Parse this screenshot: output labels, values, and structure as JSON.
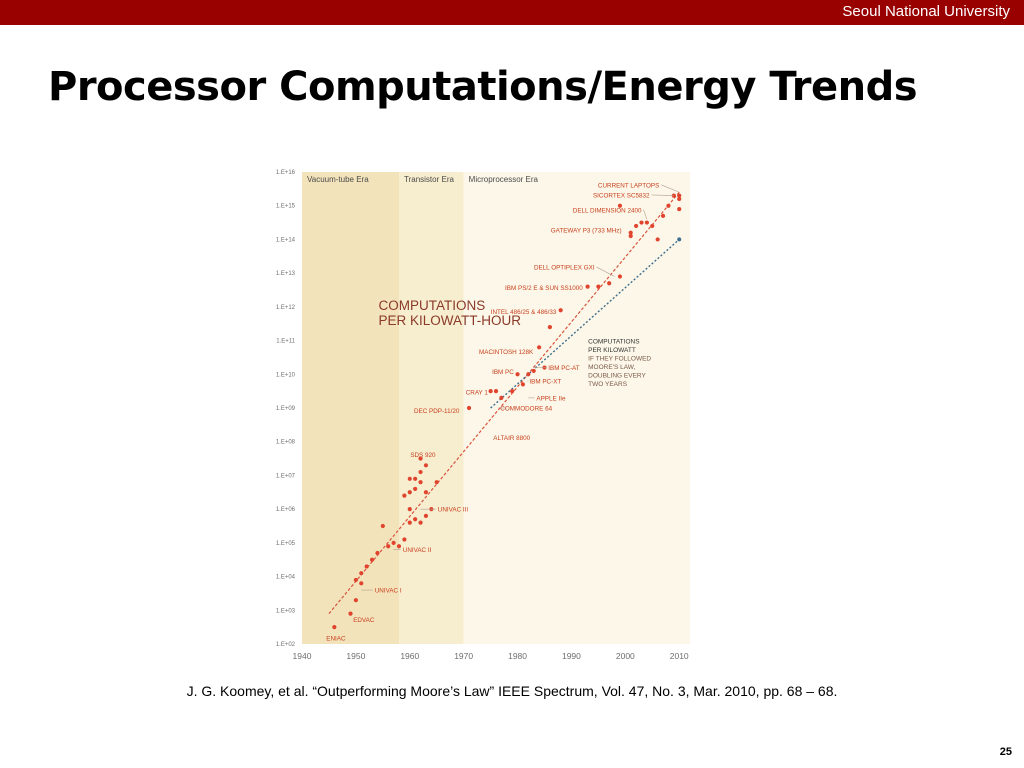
{
  "header": {
    "university": "Seoul National University"
  },
  "slide": {
    "title": "Processor Computations/Energy Trends",
    "caption": "J. G. Koomey, et al. “Outperforming Moore’s Law” IEEE Spectrum, Vol. 47, No. 3, Mar. 2010, pp. 68 – 68.",
    "page_number": "25"
  },
  "chart_data": {
    "type": "scatter",
    "title": "COMPUTATIONS PER KILOWATT-HOUR",
    "title_lines": [
      "COMPUTATIONS",
      "PER KILOWATT-HOUR"
    ],
    "xlim": [
      1940,
      2012
    ],
    "ylim_log10": [
      2,
      16
    ],
    "x_ticks": [
      1940,
      1950,
      1960,
      1970,
      1980,
      1990,
      2000,
      2010
    ],
    "y_ticks": [
      {
        "exp": 16,
        "label": "1.E+16"
      },
      {
        "exp": 15,
        "label": "1.E+15"
      },
      {
        "exp": 14,
        "label": "1.E+14"
      },
      {
        "exp": 13,
        "label": "1.E+13"
      },
      {
        "exp": 12,
        "label": "1.E+12"
      },
      {
        "exp": 11,
        "label": "1.E+11"
      },
      {
        "exp": 10,
        "label": "1.E+10"
      },
      {
        "exp": 9,
        "label": "1.E+09"
      },
      {
        "exp": 8,
        "label": "1.E+08"
      },
      {
        "exp": 7,
        "label": "1.E+07"
      },
      {
        "exp": 6,
        "label": "1.E+06"
      },
      {
        "exp": 5,
        "label": "1.E+05"
      },
      {
        "exp": 4,
        "label": "1.E+04"
      },
      {
        "exp": 3,
        "label": "1.E+03"
      },
      {
        "exp": 2,
        "label": "1.E+02"
      }
    ],
    "eras": [
      {
        "name": "Vacuum-tube Era",
        "start": 1940,
        "end": 1958,
        "color": "#f2e3bb"
      },
      {
        "name": "Transistor Era",
        "start": 1958,
        "end": 1970,
        "color": "#f7edcf"
      },
      {
        "name": "Microprocessor Era",
        "start": 1970,
        "end": 2012,
        "color": "#fcf7e8"
      }
    ],
    "colors": {
      "points": "#e0442e",
      "trend": "#d9533e",
      "moore": "#3e6f8e",
      "labels": "#c8401f",
      "axis_text": "#6e6e6e"
    },
    "points": [
      {
        "x": 1946,
        "y": 2.5
      },
      {
        "x": 1949,
        "y": 2.9
      },
      {
        "x": 1950,
        "y": 3.3
      },
      {
        "x": 1951,
        "y": 3.8
      },
      {
        "x": 1950,
        "y": 3.9
      },
      {
        "x": 1951,
        "y": 4.1
      },
      {
        "x": 1952,
        "y": 4.3
      },
      {
        "x": 1953,
        "y": 4.5
      },
      {
        "x": 1954,
        "y": 4.7
      },
      {
        "x": 1955,
        "y": 5.5
      },
      {
        "x": 1956,
        "y": 4.9
      },
      {
        "x": 1957,
        "y": 5.0
      },
      {
        "x": 1958,
        "y": 4.9
      },
      {
        "x": 1959,
        "y": 5.1
      },
      {
        "x": 1960,
        "y": 5.6
      },
      {
        "x": 1960,
        "y": 6.0
      },
      {
        "x": 1961,
        "y": 5.7
      },
      {
        "x": 1962,
        "y": 5.6
      },
      {
        "x": 1963,
        "y": 5.8
      },
      {
        "x": 1959,
        "y": 6.4
      },
      {
        "x": 1961,
        "y": 6.6
      },
      {
        "x": 1962,
        "y": 6.8
      },
      {
        "x": 1960,
        "y": 6.9
      },
      {
        "x": 1960,
        "y": 6.5
      },
      {
        "x": 1961,
        "y": 6.9
      },
      {
        "x": 1962,
        "y": 7.1
      },
      {
        "x": 1963,
        "y": 7.3
      },
      {
        "x": 1962,
        "y": 7.5
      },
      {
        "x": 1963,
        "y": 6.5
      },
      {
        "x": 1964,
        "y": 6.0
      },
      {
        "x": 1965,
        "y": 6.8
      },
      {
        "x": 1971,
        "y": 9.0
      },
      {
        "x": 1975,
        "y": 9.5
      },
      {
        "x": 1976,
        "y": 9.5
      },
      {
        "x": 1977,
        "y": 9.3
      },
      {
        "x": 1979,
        "y": 9.5
      },
      {
        "x": 1980,
        "y": 10.0
      },
      {
        "x": 1981,
        "y": 9.7
      },
      {
        "x": 1982,
        "y": 10.0
      },
      {
        "x": 1983,
        "y": 10.1
      },
      {
        "x": 1984,
        "y": 10.8
      },
      {
        "x": 1985,
        "y": 10.2
      },
      {
        "x": 1986,
        "y": 11.4
      },
      {
        "x": 1988,
        "y": 11.9
      },
      {
        "x": 1993,
        "y": 12.6
      },
      {
        "x": 1995,
        "y": 12.6
      },
      {
        "x": 1997,
        "y": 12.7
      },
      {
        "x": 1999,
        "y": 12.9
      },
      {
        "x": 2001,
        "y": 14.2
      },
      {
        "x": 2001,
        "y": 14.1
      },
      {
        "x": 2002,
        "y": 14.4
      },
      {
        "x": 2003,
        "y": 14.5
      },
      {
        "x": 2004,
        "y": 14.5
      },
      {
        "x": 2005,
        "y": 14.4
      },
      {
        "x": 2006,
        "y": 14.0
      },
      {
        "x": 2007,
        "y": 14.7
      },
      {
        "x": 2008,
        "y": 15.0
      },
      {
        "x": 2009,
        "y": 15.3
      },
      {
        "x": 2010,
        "y": 15.2
      },
      {
        "x": 2010,
        "y": 15.3
      },
      {
        "x": 2010,
        "y": 14.9
      },
      {
        "x": 1999,
        "y": 15.0
      }
    ],
    "trend_line": {
      "x1": 1945,
      "y1": 2.9,
      "x2": 2010,
      "y2": 15.4
    },
    "moore_line": {
      "x1": 1975,
      "y1": 9.0,
      "x2": 2010,
      "y2": 14.0
    },
    "moore_label_lines": [
      "COMPUTATIONS",
      "PER KILOWATT",
      "IF THEY FOLLOWED",
      "MOORE'S LAW,",
      "DOUBLING EVERY",
      "TWO YEARS"
    ],
    "annotations": [
      {
        "text": "ENIAC",
        "x": 1946,
        "y": 2.5,
        "tx": 1944.5,
        "ty": 2.18,
        "anchor": "start",
        "leader": false
      },
      {
        "text": "EDVAC",
        "x": 1951,
        "y": 3.0,
        "tx": 1949.5,
        "ty": 2.72,
        "anchor": "start",
        "leader": false
      },
      {
        "text": "UNIVAC I",
        "x": 1951,
        "y": 3.6,
        "tx": 1953.5,
        "ty": 3.6,
        "anchor": "start",
        "leader": true
      },
      {
        "text": "UNIVAC II",
        "x": 1957,
        "y": 4.8,
        "tx": 1958.7,
        "ty": 4.8,
        "anchor": "start",
        "leader": true
      },
      {
        "text": "UNIVAC III",
        "x": 1962,
        "y": 6.0,
        "tx": 1965.2,
        "ty": 6.0,
        "anchor": "start",
        "leader": true
      },
      {
        "text": "SDS 920",
        "x": 1963,
        "y": 7.5,
        "tx": 1960.1,
        "ty": 7.62,
        "anchor": "start",
        "leader": false
      },
      {
        "text": "DEC PDP-11/20",
        "x": 1971,
        "y": 9.0,
        "tx": 1969.2,
        "ty": 8.92,
        "anchor": "end",
        "leader": false
      },
      {
        "text": "ALTAIR 8800",
        "x": 1975,
        "y": 8.7,
        "tx": 1975.5,
        "ty": 8.13,
        "anchor": "start",
        "leader": false
      },
      {
        "text": "COMMODORE 64",
        "x": 1978,
        "y": 9.0,
        "tx": 1976.8,
        "ty": 9.0,
        "anchor": "start",
        "leader": true
      },
      {
        "text": "CRAY 1",
        "x": 1976,
        "y": 9.5,
        "tx": 1974.5,
        "ty": 9.48,
        "anchor": "end",
        "leader": false
      },
      {
        "text": "APPLE IIe",
        "x": 1982,
        "y": 9.3,
        "tx": 1983.5,
        "ty": 9.3,
        "anchor": "start",
        "leader": true
      },
      {
        "text": "IBM PC-XT",
        "x": 1982,
        "y": 9.8,
        "tx": 1982.2,
        "ty": 9.8,
        "anchor": "start",
        "leader": true
      },
      {
        "text": "IBM PC-AT",
        "x": 1983,
        "y": 10.2,
        "tx": 1985.7,
        "ty": 10.2,
        "anchor": "start",
        "leader": true
      },
      {
        "text": "IBM PC",
        "x": 1980,
        "y": 10.0,
        "tx": 1979.3,
        "ty": 10.08,
        "anchor": "end",
        "leader": false
      },
      {
        "text": "MACINTOSH 128K",
        "x": 1984,
        "y": 10.8,
        "tx": 1982.9,
        "ty": 10.68,
        "anchor": "end",
        "leader": false
      },
      {
        "text": "INTEL 486/25 & 486/33",
        "x": 1988,
        "y": 11.9,
        "tx": 1987.2,
        "ty": 11.86,
        "anchor": "end",
        "leader": false
      },
      {
        "text": "IBM PS/2 E & SUN SS1000",
        "x": 1993,
        "y": 12.6,
        "tx": 1992.1,
        "ty": 12.58,
        "anchor": "end",
        "leader": false
      },
      {
        "text": "DELL OPTIPLEX GXI",
        "x": 1998,
        "y": 12.9,
        "tx": 1994.3,
        "ty": 13.18,
        "anchor": "end",
        "leader": true
      },
      {
        "text": "GATEWAY P3 (733 MHz)",
        "x": 2001,
        "y": 14.3,
        "tx": 1999.3,
        "ty": 14.28,
        "anchor": "end",
        "leader": false
      },
      {
        "text": "DELL DIMENSION 2400",
        "x": 2004,
        "y": 14.6,
        "tx": 2003.0,
        "ty": 14.88,
        "anchor": "end",
        "leader": true
      },
      {
        "text": "SICORTEX SC5832",
        "x": 2009,
        "y": 15.3,
        "tx": 2004.5,
        "ty": 15.32,
        "anchor": "end",
        "leader": true
      },
      {
        "text": "CURRENT LAPTOPS",
        "x": 2010,
        "y": 15.4,
        "tx": 2006.3,
        "ty": 15.62,
        "anchor": "end",
        "leader": true
      }
    ]
  }
}
